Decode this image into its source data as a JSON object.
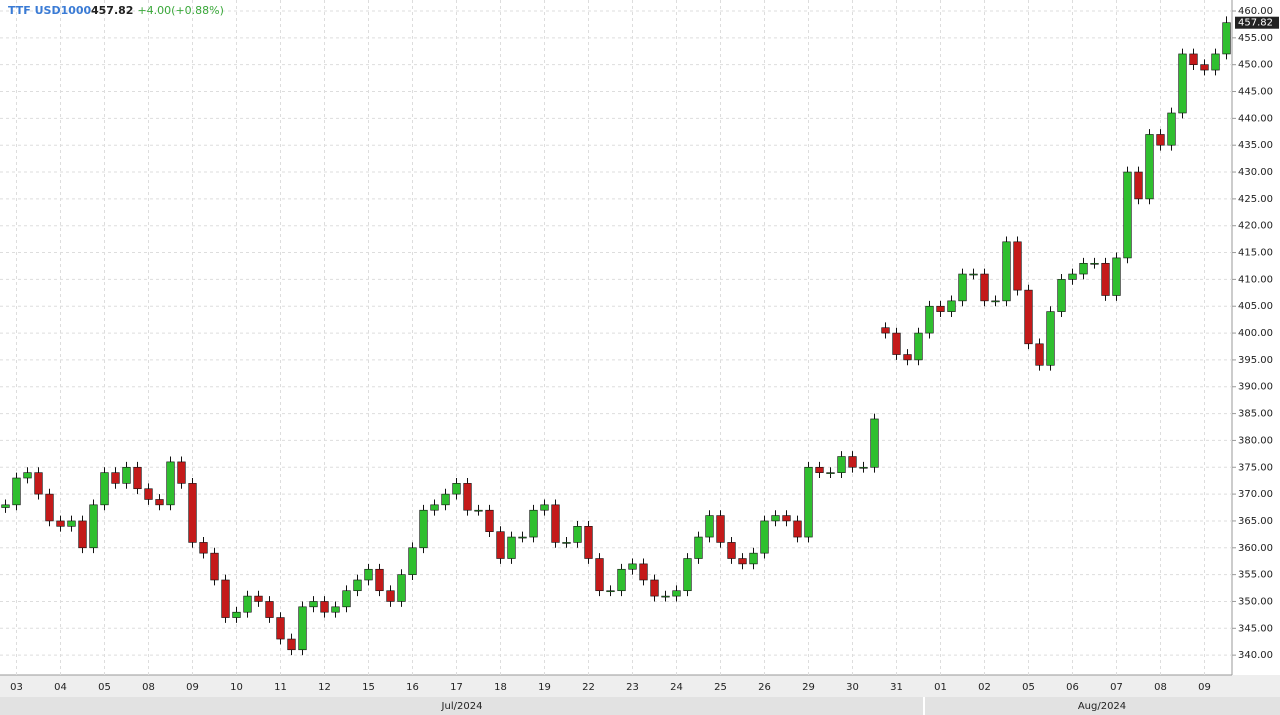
{
  "chart_data": {
    "type": "candlestick",
    "title": "TTF USD1000",
    "last_price": 457.82,
    "change": "+4.00(+0.88%)",
    "categories": [
      null,
      "03",
      null,
      null,
      null,
      "04",
      null,
      null,
      null,
      "05",
      null,
      null,
      null,
      "08",
      null,
      null,
      null,
      "09",
      null,
      null,
      null,
      "10",
      null,
      null,
      null,
      "11",
      null,
      null,
      null,
      "12",
      null,
      null,
      null,
      "15",
      null,
      null,
      null,
      "16",
      null,
      null,
      null,
      "17",
      null,
      null,
      null,
      "18",
      null,
      null,
      null,
      "19",
      null,
      null,
      null,
      "22",
      null,
      null,
      null,
      "23",
      null,
      null,
      null,
      "24",
      null,
      null,
      null,
      "25",
      null,
      null,
      null,
      "26",
      null,
      null,
      null,
      "29",
      null,
      null,
      null,
      "30",
      null,
      null,
      null,
      "31",
      null,
      null,
      null,
      "01",
      null,
      null,
      null,
      "02",
      null,
      null,
      null,
      "05",
      null,
      null,
      null,
      "06",
      null,
      null,
      null,
      "07",
      null,
      null,
      null,
      "08",
      null,
      null,
      null,
      "09",
      null,
      null
    ],
    "months": [
      "Jul/2024",
      "Aug/2024"
    ],
    "open": [
      367.5,
      368,
      373,
      374,
      370,
      365,
      364,
      365,
      360,
      368,
      374,
      372,
      375,
      371,
      369,
      368,
      376,
      372,
      361,
      359,
      354,
      347,
      348,
      351,
      350,
      347,
      343,
      341,
      349,
      350,
      348,
      349,
      352,
      354,
      356,
      352,
      350,
      355,
      360,
      367,
      368,
      370,
      372,
      367,
      367,
      363,
      358,
      362,
      362,
      367,
      368,
      361,
      361,
      364,
      358,
      352,
      352,
      356,
      357,
      354,
      351,
      351,
      352,
      358,
      362,
      366,
      361,
      358,
      357,
      359,
      365,
      366,
      365,
      362,
      375,
      374,
      374,
      377,
      375,
      375,
      401,
      400,
      396,
      395,
      400,
      405,
      404,
      406,
      411,
      411,
      406,
      406,
      417,
      408,
      398,
      394,
      404,
      410,
      411,
      413,
      413,
      407,
      414,
      430,
      425,
      437,
      435,
      441,
      452,
      450,
      449,
      452
    ],
    "high": [
      369,
      374,
      375,
      375,
      371,
      366,
      366,
      366,
      369,
      375,
      375,
      376,
      376,
      372,
      370,
      377,
      377,
      373,
      362,
      360,
      355,
      349,
      352,
      352,
      351,
      348,
      344,
      350,
      351,
      351,
      350,
      353,
      355,
      357,
      357,
      353,
      356,
      361,
      368,
      369,
      371,
      373,
      373,
      368,
      368,
      364,
      363,
      363,
      368,
      369,
      369,
      362,
      365,
      365,
      359,
      353,
      357,
      358,
      358,
      355,
      352,
      353,
      359,
      363,
      367,
      367,
      362,
      359,
      360,
      366,
      367,
      367,
      366,
      376,
      376,
      375,
      378,
      378,
      376,
      385,
      402,
      401,
      397,
      401,
      406,
      406,
      407,
      412,
      412,
      412,
      407,
      418,
      418,
      409,
      399,
      405,
      411,
      412,
      414,
      414,
      414,
      415,
      431,
      431,
      438,
      438,
      442,
      453,
      453,
      451,
      453,
      459
    ],
    "low": [
      366.5,
      367,
      372,
      369,
      364,
      363,
      363,
      359,
      359,
      367,
      371,
      371,
      370,
      368,
      367,
      367,
      371,
      360,
      358,
      353,
      346,
      346,
      347,
      349,
      346,
      342,
      340,
      340,
      348,
      347,
      347,
      348,
      351,
      353,
      351,
      349,
      349,
      354,
      359,
      366,
      367,
      369,
      366,
      366,
      362,
      357,
      357,
      361,
      361,
      366,
      360,
      360,
      360,
      357,
      351,
      351,
      351,
      355,
      353,
      350,
      350,
      350,
      351,
      357,
      361,
      360,
      357,
      356,
      356,
      358,
      364,
      364,
      361,
      361,
      373,
      373,
      373,
      374,
      374,
      374,
      399,
      395,
      394,
      394,
      399,
      403,
      403,
      405,
      410,
      405,
      405,
      405,
      407,
      397,
      393,
      393,
      403,
      409,
      410,
      412,
      406,
      406,
      413,
      424,
      424,
      434,
      434,
      440,
      449,
      448,
      448,
      451
    ],
    "close": [
      368,
      373,
      374,
      370,
      365,
      364,
      365,
      360,
      368,
      374,
      372,
      375,
      371,
      369,
      368,
      376,
      372,
      361,
      359,
      354,
      347,
      348,
      351,
      350,
      347,
      343,
      341,
      349,
      350,
      348,
      349,
      352,
      354,
      356,
      352,
      350,
      355,
      360,
      367,
      368,
      370,
      372,
      367,
      367,
      363,
      358,
      362,
      362,
      367,
      368,
      361,
      361,
      364,
      358,
      352,
      352,
      356,
      357,
      354,
      351,
      351,
      352,
      358,
      362,
      366,
      361,
      358,
      357,
      359,
      365,
      366,
      365,
      362,
      375,
      374,
      374,
      377,
      375,
      375,
      384,
      400,
      396,
      395,
      400,
      405,
      404,
      406,
      411,
      411,
      406,
      406,
      417,
      408,
      398,
      394,
      404,
      410,
      411,
      413,
      413,
      407,
      414,
      430,
      425,
      437,
      435,
      441,
      452,
      450,
      449,
      452,
      457.82
    ],
    "up_color": "#2fbf2f",
    "down_color": "#c41a1a",
    "ylim": [
      336.3,
      462.05
    ],
    "yticks": [
      {
        "value": 340,
        "label": "340.00"
      },
      {
        "value": 345,
        "label": "345.00"
      },
      {
        "value": 350,
        "label": "350.00"
      },
      {
        "value": 355,
        "label": "355.00"
      },
      {
        "value": 360,
        "label": "360.00"
      },
      {
        "value": 365,
        "label": "365.00"
      },
      {
        "value": 370,
        "label": "370.00"
      },
      {
        "value": 375,
        "label": "375.00"
      },
      {
        "value": 380,
        "label": "380.00"
      },
      {
        "value": 385,
        "label": "385.00"
      },
      {
        "value": 390,
        "label": "390.00"
      },
      {
        "value": 395,
        "label": "395.00"
      },
      {
        "value": 400,
        "label": "400.00"
      },
      {
        "value": 405,
        "label": "405.00"
      },
      {
        "value": 410,
        "label": "410.00"
      },
      {
        "value": 415,
        "label": "415.00"
      },
      {
        "value": 420,
        "label": "420.00"
      },
      {
        "value": 425,
        "label": "425.00"
      },
      {
        "value": 430,
        "label": "430.00"
      },
      {
        "value": 435,
        "label": "435.00"
      },
      {
        "value": 440,
        "label": "440.00"
      },
      {
        "value": 445,
        "label": "445.00"
      },
      {
        "value": 450,
        "label": "450.00"
      },
      {
        "value": 455,
        "label": "455.00"
      },
      {
        "value": 460,
        "label": "460.00"
      }
    ],
    "grid": true
  }
}
